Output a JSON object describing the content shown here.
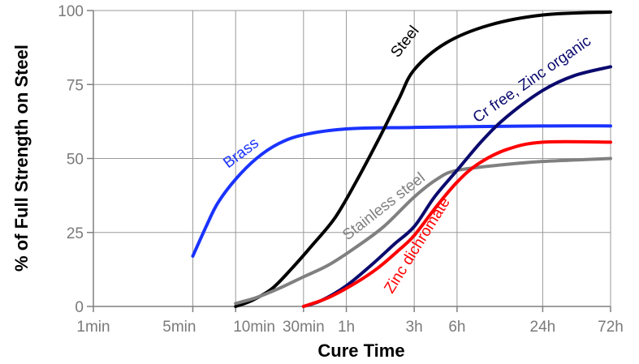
{
  "chart_data": {
    "type": "line",
    "title": "",
    "xlabel": "Cure Time",
    "ylabel": "% of Full Strength on Steel",
    "x_scale": "log",
    "x_unit": "minutes",
    "xlim": [
      1,
      4320
    ],
    "ylim": [
      0,
      100
    ],
    "grid": true,
    "legend": "inline labels on curves",
    "x_ticks": [
      {
        "value": 1,
        "label": "1min"
      },
      {
        "value": 5,
        "label": "5min"
      },
      {
        "value": 10,
        "label": "10min"
      },
      {
        "value": 30,
        "label": "30min"
      },
      {
        "value": 60,
        "label": "1h"
      },
      {
        "value": 180,
        "label": "3h"
      },
      {
        "value": 360,
        "label": "6h"
      },
      {
        "value": 1440,
        "label": "24h"
      },
      {
        "value": 4320,
        "label": "72h"
      }
    ],
    "y_ticks": [
      {
        "value": 0,
        "label": "0"
      },
      {
        "value": 25,
        "label": "25"
      },
      {
        "value": 50,
        "label": "50"
      },
      {
        "value": 75,
        "label": "75"
      },
      {
        "value": 100,
        "label": "100"
      }
    ],
    "series": [
      {
        "name": "Brass",
        "color": "#1a33ff",
        "points": [
          [
            5,
            17
          ],
          [
            6.2,
            27
          ],
          [
            7.5,
            35
          ],
          [
            10,
            43
          ],
          [
            14,
            50
          ],
          [
            20,
            55
          ],
          [
            30,
            58
          ],
          [
            60,
            60
          ],
          [
            180,
            60.5
          ],
          [
            1440,
            61
          ],
          [
            4320,
            61
          ]
        ]
      },
      {
        "name": "Steel",
        "color": "#000000",
        "points": [
          [
            10,
            0
          ],
          [
            13,
            2
          ],
          [
            18,
            6
          ],
          [
            25,
            13
          ],
          [
            35,
            21
          ],
          [
            50,
            30
          ],
          [
            70,
            42
          ],
          [
            100,
            56
          ],
          [
            140,
            70
          ],
          [
            180,
            80
          ],
          [
            300,
            89
          ],
          [
            600,
            95
          ],
          [
            1440,
            98.5
          ],
          [
            4320,
            99.5
          ]
        ]
      },
      {
        "name": "Stainless steel",
        "color": "#808080",
        "points": [
          [
            10,
            1
          ],
          [
            14,
            3
          ],
          [
            20,
            6
          ],
          [
            30,
            10
          ],
          [
            45,
            14
          ],
          [
            70,
            20
          ],
          [
            110,
            27
          ],
          [
            180,
            37
          ],
          [
            260,
            43
          ],
          [
            360,
            46
          ],
          [
            800,
            48
          ],
          [
            1440,
            49
          ],
          [
            4320,
            50
          ]
        ]
      },
      {
        "name": "Cr free, Zinc organic",
        "color": "#0a0a6e",
        "points": [
          [
            30,
            0
          ],
          [
            40,
            2
          ],
          [
            60,
            7
          ],
          [
            90,
            14
          ],
          [
            130,
            21
          ],
          [
            180,
            27
          ],
          [
            250,
            37
          ],
          [
            360,
            46
          ],
          [
            540,
            56
          ],
          [
            800,
            64
          ],
          [
            1440,
            73
          ],
          [
            2400,
            78
          ],
          [
            4320,
            81
          ]
        ]
      },
      {
        "name": "Zinc dichromate",
        "color": "#ff0000",
        "points": [
          [
            30,
            0
          ],
          [
            45,
            3
          ],
          [
            70,
            8
          ],
          [
            100,
            13
          ],
          [
            140,
            19
          ],
          [
            180,
            24
          ],
          [
            260,
            34
          ],
          [
            360,
            42
          ],
          [
            500,
            48
          ],
          [
            800,
            53
          ],
          [
            1440,
            55.5
          ],
          [
            4320,
            55.5
          ]
        ]
      }
    ]
  }
}
